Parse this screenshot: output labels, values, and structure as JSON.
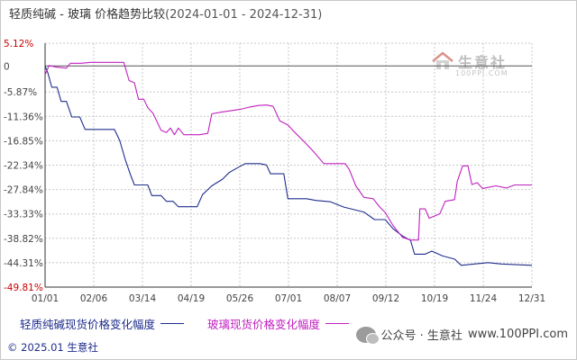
{
  "title": {
    "main": "轻质纯碱 - 玻璃 价格趋势比较",
    "range": "(2024-01-01 - 2024-12-31)"
  },
  "watermark": {
    "text": "生意社",
    "url": "100PPI.COM"
  },
  "footer": {
    "copyright": "© 2025.01 生意社",
    "wechat": "公众号 · 生意社",
    "site": "www.100PPI.com"
  },
  "colors": {
    "series1": "#1f2d8c",
    "series2": "#c020c0",
    "grid": "#c8c8c8",
    "axis": "#333333",
    "ytick": "#cc0000"
  },
  "chart_data": {
    "type": "line",
    "yticks": [
      "5.12%",
      "0",
      "-5.87%",
      "-11.36%",
      "-16.85%",
      "-22.34%",
      "-27.84%",
      "-33.33%",
      "-38.82%",
      "-44.31%",
      "-49.81%"
    ],
    "ytick_values": [
      5.12,
      0,
      -5.87,
      -11.36,
      -16.85,
      -22.34,
      -27.84,
      -33.33,
      -38.82,
      -44.31,
      -49.81
    ],
    "xticks": [
      "01/01",
      "02/06",
      "03/14",
      "04/19",
      "05/26",
      "07/01",
      "08/07",
      "09/12",
      "10/19",
      "11/24",
      "12/31"
    ],
    "ylim": [
      -49.81,
      5.12
    ],
    "xlim": [
      "2024-01-01",
      "2024-12-31"
    ],
    "grid": true,
    "legend_position": "bottom",
    "series": [
      {
        "name": "轻质纯碱现货价格变化幅度",
        "color": "#1f2d8c",
        "points": [
          [
            "2024-01-01",
            0
          ],
          [
            "2024-01-03",
            -1.5
          ],
          [
            "2024-01-06",
            -4.8
          ],
          [
            "2024-01-10",
            -4.8
          ],
          [
            "2024-01-13",
            -8.0
          ],
          [
            "2024-01-17",
            -8.0
          ],
          [
            "2024-01-21",
            -11.5
          ],
          [
            "2024-01-27",
            -11.5
          ],
          [
            "2024-01-31",
            -14.3
          ],
          [
            "2024-02-14",
            -14.3
          ],
          [
            "2024-02-22",
            -14.3
          ],
          [
            "2024-02-26",
            -16.8
          ],
          [
            "2024-03-01",
            -21.0
          ],
          [
            "2024-03-05",
            -24.5
          ],
          [
            "2024-03-08",
            -26.8
          ],
          [
            "2024-03-18",
            -26.8
          ],
          [
            "2024-03-21",
            -29.2
          ],
          [
            "2024-03-28",
            -29.2
          ],
          [
            "2024-04-01",
            -30.5
          ],
          [
            "2024-04-06",
            -30.5
          ],
          [
            "2024-04-10",
            -31.7
          ],
          [
            "2024-04-24",
            -31.7
          ],
          [
            "2024-04-28",
            -29.0
          ],
          [
            "2024-05-05",
            -27.0
          ],
          [
            "2024-05-13",
            -25.5
          ],
          [
            "2024-05-18",
            -24.0
          ],
          [
            "2024-05-24",
            -23.0
          ],
          [
            "2024-05-30",
            -22.0
          ],
          [
            "2024-06-10",
            -22.0
          ],
          [
            "2024-06-15",
            -22.3
          ],
          [
            "2024-06-18",
            -24.3
          ],
          [
            "2024-06-28",
            -24.3
          ],
          [
            "2024-07-01",
            -29.9
          ],
          [
            "2024-07-15",
            -29.9
          ],
          [
            "2024-07-22",
            -30.3
          ],
          [
            "2024-08-02",
            -30.6
          ],
          [
            "2024-08-12",
            -31.8
          ],
          [
            "2024-08-27",
            -32.9
          ],
          [
            "2024-09-04",
            -34.6
          ],
          [
            "2024-09-12",
            -34.6
          ],
          [
            "2024-09-18",
            -36.7
          ],
          [
            "2024-09-25",
            -38.3
          ],
          [
            "2024-10-01",
            -39.3
          ],
          [
            "2024-10-04",
            -42.4
          ],
          [
            "2024-10-12",
            -42.4
          ],
          [
            "2024-10-17",
            -41.7
          ],
          [
            "2024-10-25",
            -42.8
          ],
          [
            "2024-11-03",
            -43.5
          ],
          [
            "2024-11-08",
            -44.9
          ],
          [
            "2024-11-18",
            -44.6
          ],
          [
            "2024-11-28",
            -44.3
          ],
          [
            "2024-12-08",
            -44.6
          ],
          [
            "2024-12-31",
            -44.9
          ]
        ]
      },
      {
        "name": "玻璃现货价格变化幅度",
        "color": "#c020c0",
        "points": [
          [
            "2024-01-01",
            -2.0
          ],
          [
            "2024-01-04",
            0.1
          ],
          [
            "2024-01-10",
            -0.3
          ],
          [
            "2024-01-17",
            -0.5
          ],
          [
            "2024-01-20",
            0.6
          ],
          [
            "2024-01-28",
            0.6
          ],
          [
            "2024-02-04",
            0.8
          ],
          [
            "2024-02-12",
            0.8
          ],
          [
            "2024-02-21",
            0.8
          ],
          [
            "2024-02-29",
            0.8
          ],
          [
            "2024-03-04",
            -3.3
          ],
          [
            "2024-03-08",
            -3.8
          ],
          [
            "2024-03-11",
            -7.5
          ],
          [
            "2024-03-15",
            -7.5
          ],
          [
            "2024-03-18",
            -9.4
          ],
          [
            "2024-03-22",
            -10.7
          ],
          [
            "2024-03-28",
            -14.5
          ],
          [
            "2024-04-01",
            -15.0
          ],
          [
            "2024-04-04",
            -14.0
          ],
          [
            "2024-04-07",
            -15.5
          ],
          [
            "2024-04-10",
            -14.0
          ],
          [
            "2024-04-14",
            -15.5
          ],
          [
            "2024-04-19",
            -15.5
          ],
          [
            "2024-04-26",
            -15.5
          ],
          [
            "2024-05-02",
            -15.2
          ],
          [
            "2024-05-05",
            -10.8
          ],
          [
            "2024-05-12",
            -10.4
          ],
          [
            "2024-05-19",
            -10.1
          ],
          [
            "2024-05-26",
            -9.8
          ],
          [
            "2024-06-02",
            -9.3
          ],
          [
            "2024-06-09",
            -8.9
          ],
          [
            "2024-06-15",
            -8.8
          ],
          [
            "2024-06-20",
            -9.1
          ],
          [
            "2024-06-25",
            -12.4
          ],
          [
            "2024-07-01",
            -13.3
          ],
          [
            "2024-07-07",
            -15.2
          ],
          [
            "2024-07-14",
            -17.3
          ],
          [
            "2024-07-20",
            -19.2
          ],
          [
            "2024-07-28",
            -22.0
          ],
          [
            "2024-08-04",
            -22.0
          ],
          [
            "2024-08-13",
            -22.0
          ],
          [
            "2024-08-16",
            -23.3
          ],
          [
            "2024-08-21",
            -27.0
          ],
          [
            "2024-08-27",
            -29.6
          ],
          [
            "2024-09-03",
            -29.9
          ],
          [
            "2024-09-08",
            -31.8
          ],
          [
            "2024-09-12",
            -33.0
          ],
          [
            "2024-09-18",
            -36.0
          ],
          [
            "2024-09-25",
            -38.6
          ],
          [
            "2024-10-01",
            -39.2
          ],
          [
            "2024-10-07",
            -39.2
          ],
          [
            "2024-10-08",
            -32.2
          ],
          [
            "2024-10-12",
            -32.2
          ],
          [
            "2024-10-15",
            -34.3
          ],
          [
            "2024-10-19",
            -33.8
          ],
          [
            "2024-10-23",
            -33.3
          ],
          [
            "2024-10-27",
            -30.5
          ],
          [
            "2024-11-03",
            -30.1
          ],
          [
            "2024-11-05",
            -26.0
          ],
          [
            "2024-11-09",
            -22.5
          ],
          [
            "2024-11-13",
            -22.5
          ],
          [
            "2024-11-16",
            -26.7
          ],
          [
            "2024-11-20",
            -26.3
          ],
          [
            "2024-11-24",
            -27.6
          ],
          [
            "2024-12-04",
            -27.0
          ],
          [
            "2024-12-12",
            -27.5
          ],
          [
            "2024-12-18",
            -26.8
          ],
          [
            "2024-12-31",
            -26.8
          ]
        ]
      }
    ]
  }
}
